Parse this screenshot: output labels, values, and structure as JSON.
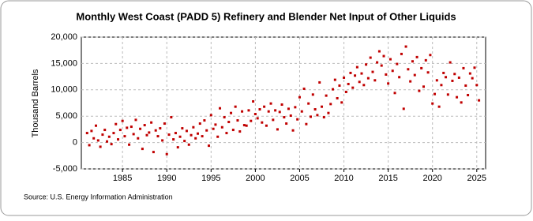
{
  "chart_data": {
    "type": "scatter",
    "title": "Monthly West Coast (PADD 5) Refinery and Blender Net Input of Other Liquids",
    "y_label": "Thousand Barrels",
    "source": "Source: U.S. Energy Information Administration",
    "color": "#c00000",
    "grid": true,
    "xlim": [
      1980.35,
      2026
    ],
    "xticks": [
      1985,
      1990,
      1995,
      2000,
      2005,
      2010,
      2015,
      2020,
      2025
    ],
    "ylim": [
      -5000,
      20000
    ],
    "yticks": [
      {
        "value": -5000,
        "label": "-5,000"
      },
      0,
      {
        "value": 5000,
        "label": "5,000"
      },
      {
        "value": 10000,
        "label": "10,000"
      },
      {
        "value": 15000,
        "label": "15,000"
      },
      {
        "value": 20000,
        "label": "20,000"
      }
    ],
    "x": [
      1981,
      1981.25,
      1981.5,
      1981.75,
      1982,
      1982.25,
      1982.5,
      1982.75,
      1983,
      1983.25,
      1983.5,
      1983.75,
      1984,
      1984.25,
      1984.5,
      1984.75,
      1985,
      1985.25,
      1985.5,
      1985.75,
      1986,
      1986.25,
      1986.5,
      1986.75,
      1987,
      1987.25,
      1987.5,
      1987.75,
      1988,
      1988.25,
      1988.5,
      1988.75,
      1989,
      1989.25,
      1989.5,
      1989.75,
      1990,
      1990.25,
      1990.5,
      1990.75,
      1991,
      1991.25,
      1991.5,
      1991.75,
      1992,
      1992.25,
      1992.5,
      1992.75,
      1993,
      1993.25,
      1993.5,
      1993.75,
      1994,
      1994.25,
      1994.5,
      1994.75,
      1995,
      1995.25,
      1995.5,
      1995.75,
      1996,
      1996.25,
      1996.5,
      1996.75,
      1997,
      1997.25,
      1997.5,
      1997.75,
      1998,
      1998.25,
      1998.5,
      1998.75,
      1999,
      1999.25,
      1999.5,
      1999.75,
      2000,
      2000.25,
      2000.5,
      2000.75,
      2001,
      2001.25,
      2001.5,
      2001.75,
      2002,
      2002.25,
      2002.5,
      2002.75,
      2003,
      2003.25,
      2003.5,
      2003.75,
      2004,
      2004.25,
      2004.5,
      2004.75,
      2005,
      2005.25,
      2005.5,
      2005.75,
      2006,
      2006.25,
      2006.5,
      2006.75,
      2007,
      2007.25,
      2007.5,
      2007.75,
      2008,
      2008.25,
      2008.5,
      2008.75,
      2009,
      2009.25,
      2009.5,
      2009.75,
      2010,
      2010.25,
      2010.5,
      2010.75,
      2011,
      2011.25,
      2011.5,
      2011.75,
      2012,
      2012.25,
      2012.5,
      2012.75,
      2013,
      2013.25,
      2013.5,
      2013.75,
      2014,
      2014.25,
      2014.5,
      2014.75,
      2015,
      2015.25,
      2015.5,
      2015.75,
      2016,
      2016.25,
      2016.5,
      2016.75,
      2017,
      2017.25,
      2017.5,
      2017.75,
      2018,
      2018.25,
      2018.5,
      2018.75,
      2019,
      2019.25,
      2019.5,
      2019.75,
      2020,
      2020.25,
      2020.5,
      2020.75,
      2021,
      2021.25,
      2021.5,
      2021.75,
      2022,
      2022.25,
      2022.5,
      2022.75,
      2023,
      2023.25,
      2023.5,
      2023.75,
      2024,
      2024.25,
      2024.5,
      2024.75,
      2025,
      2025.25
    ],
    "values": [
      1800,
      -500,
      2200,
      800,
      3200,
      400,
      -800,
      1500,
      2400,
      200,
      1100,
      -300,
      1800,
      3500,
      600,
      2400,
      4100,
      1200,
      2800,
      -400,
      3000,
      1600,
      4300,
      800,
      2600,
      -1200,
      3300,
      1400,
      1900,
      3800,
      -1800,
      2300,
      1200,
      2700,
      400,
      3600,
      -2200,
      1500,
      4800,
      600,
      1800,
      -900,
      1100,
      2700,
      300,
      2200,
      -400,
      1400,
      2900,
      800,
      1700,
      3600,
      1200,
      4200,
      2300,
      -600,
      5200,
      2600,
      3400,
      1100,
      6500,
      2900,
      4800,
      1800,
      3900,
      5600,
      2400,
      6800,
      4200,
      2100,
      5900,
      3300,
      3200,
      6100,
      4100,
      7800,
      5400,
      4600,
      6300,
      3800,
      6800,
      3200,
      5900,
      7400,
      4300,
      6100,
      2500,
      5800,
      7200,
      4800,
      3600,
      6400,
      5100,
      2300,
      6700,
      4400,
      8600,
      5900,
      10200,
      3500,
      7400,
      4900,
      9100,
      6300,
      5200,
      11400,
      6800,
      4800,
      8900,
      5600,
      7300,
      10100,
      11900,
      8400,
      10800,
      7600,
      12300,
      9600,
      11100,
      13200,
      10400,
      12700,
      14300,
      11500,
      13100,
      10900,
      14800,
      12200,
      16100,
      13400,
      11800,
      15200,
      17300,
      14600,
      16400,
      12900,
      11200,
      15800,
      13600,
      9400,
      14900,
      12400,
      16800,
      6400,
      18200,
      13900,
      11600,
      15400,
      12800,
      16200,
      9800,
      14100,
      10600,
      15600,
      13300,
      16600,
      7400,
      9200,
      11800,
      6800,
      10900,
      13200,
      12400,
      9100,
      15200,
      11700,
      13000,
      8600,
      12300,
      7600,
      14100,
      10800,
      9000,
      13100,
      12200,
      14200,
      10900,
      8000
    ]
  }
}
